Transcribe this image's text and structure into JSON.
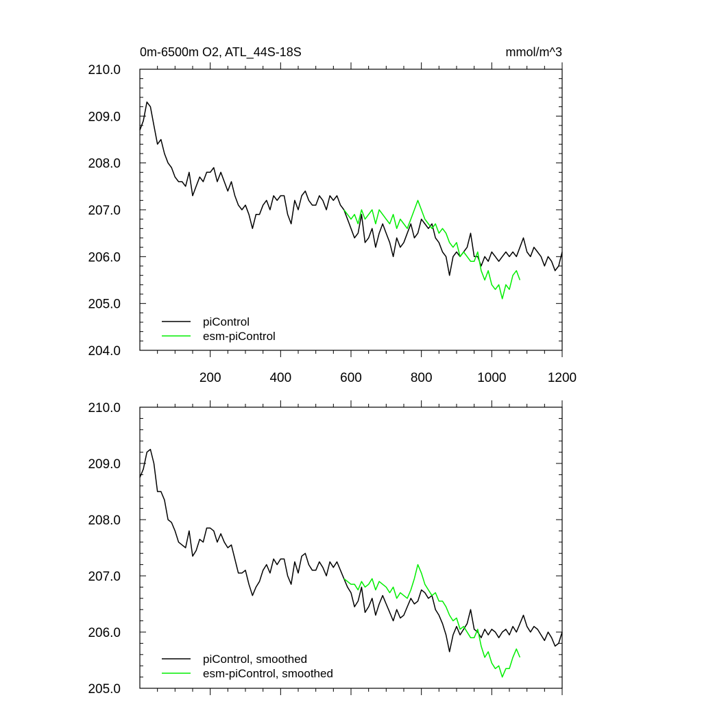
{
  "chart_data": [
    {
      "type": "line",
      "title": "0m-6500m O2, ATL_44S-18S",
      "units": "mmol/m^3",
      "xlim": [
        0,
        1200
      ],
      "ylim": [
        204.0,
        210.0
      ],
      "xticks": [
        200,
        400,
        600,
        800,
        1000,
        1200
      ],
      "xtick_labels": [
        "200",
        "400",
        "600",
        "800",
        "1000",
        "1200"
      ],
      "yticks": [
        204.0,
        205.0,
        206.0,
        207.0,
        208.0,
        209.0,
        210.0
      ],
      "ytick_labels": [
        "204.0",
        "205.0",
        "206.0",
        "207.0",
        "208.0",
        "209.0",
        "210.0"
      ],
      "legend_position": "bottom-left",
      "series": [
        {
          "name": "piControl",
          "color": "#000000",
          "x": [
            0,
            10,
            20,
            30,
            40,
            50,
            60,
            70,
            80,
            90,
            100,
            110,
            120,
            130,
            140,
            150,
            160,
            170,
            180,
            190,
            200,
            210,
            220,
            230,
            240,
            250,
            260,
            270,
            280,
            290,
            300,
            310,
            320,
            330,
            340,
            350,
            360,
            370,
            380,
            390,
            400,
            410,
            420,
            430,
            440,
            450,
            460,
            470,
            480,
            490,
            500,
            510,
            520,
            530,
            540,
            550,
            560,
            570,
            580,
            590,
            600,
            610,
            620,
            630,
            640,
            650,
            660,
            670,
            680,
            690,
            700,
            710,
            720,
            730,
            740,
            750,
            760,
            770,
            780,
            790,
            800,
            810,
            820,
            830,
            840,
            850,
            860,
            870,
            880,
            890,
            900,
            910,
            920,
            930,
            940,
            950,
            960,
            970,
            980,
            990,
            1000,
            1010,
            1020,
            1030,
            1040,
            1050,
            1060,
            1070,
            1080,
            1090,
            1100,
            1110,
            1120,
            1130,
            1140,
            1150,
            1160,
            1170,
            1180,
            1190,
            1200
          ],
          "values": [
            208.7,
            208.9,
            209.3,
            209.2,
            208.8,
            208.4,
            208.5,
            208.2,
            208.0,
            207.9,
            207.7,
            207.6,
            207.6,
            207.5,
            207.8,
            207.3,
            207.5,
            207.7,
            207.6,
            207.8,
            207.8,
            207.9,
            207.6,
            207.8,
            207.6,
            207.4,
            207.6,
            207.3,
            207.1,
            207.0,
            207.1,
            206.9,
            206.6,
            206.9,
            206.9,
            207.1,
            207.2,
            207.0,
            207.3,
            207.2,
            207.3,
            207.3,
            206.9,
            206.7,
            207.2,
            207.0,
            207.3,
            207.4,
            207.2,
            207.1,
            207.1,
            207.3,
            207.2,
            207.0,
            207.3,
            207.2,
            207.3,
            207.1,
            207.0,
            206.8,
            206.6,
            206.4,
            206.5,
            206.9,
            206.3,
            206.4,
            206.6,
            206.2,
            206.5,
            206.7,
            206.5,
            206.3,
            206.0,
            206.4,
            206.2,
            206.3,
            206.5,
            206.7,
            206.4,
            206.5,
            206.8,
            206.7,
            206.6,
            206.7,
            206.4,
            206.3,
            206.1,
            206.0,
            205.6,
            206.0,
            206.1,
            206.0,
            206.1,
            206.2,
            206.5,
            206.0,
            206.0,
            205.8,
            206.0,
            205.9,
            206.1,
            206.0,
            205.9,
            206.0,
            206.1,
            206.0,
            206.1,
            206.0,
            206.2,
            206.4,
            206.1,
            206.0,
            206.2,
            206.1,
            206.0,
            205.8,
            206.0,
            205.9,
            205.7,
            205.8,
            206.1
          ]
        },
        {
          "name": "esm-piControl",
          "color": "#00ee00",
          "x": [
            580,
            590,
            600,
            610,
            620,
            630,
            640,
            650,
            660,
            670,
            680,
            690,
            700,
            710,
            720,
            730,
            740,
            750,
            760,
            770,
            780,
            790,
            800,
            810,
            820,
            830,
            840,
            850,
            860,
            870,
            880,
            890,
            900,
            910,
            920,
            930,
            940,
            950,
            960,
            970,
            980,
            990,
            1000,
            1010,
            1020,
            1030,
            1040,
            1050,
            1060,
            1070,
            1080
          ],
          "values": [
            207.0,
            206.9,
            206.8,
            206.9,
            206.7,
            207.0,
            206.8,
            206.9,
            207.0,
            206.7,
            207.0,
            206.9,
            206.8,
            206.7,
            206.9,
            206.6,
            206.8,
            206.7,
            206.6,
            206.8,
            207.0,
            207.2,
            207.0,
            206.8,
            206.7,
            206.6,
            206.7,
            206.5,
            206.6,
            206.5,
            206.3,
            206.2,
            206.3,
            206.0,
            206.1,
            206.0,
            205.9,
            205.9,
            206.1,
            205.7,
            205.5,
            205.7,
            205.4,
            205.3,
            205.4,
            205.1,
            205.4,
            205.3,
            205.6,
            205.7,
            205.5
          ]
        }
      ]
    },
    {
      "type": "line",
      "title": "",
      "xlim": [
        0,
        1200
      ],
      "ylim": [
        205.0,
        210.0
      ],
      "yticks": [
        205.0,
        206.0,
        207.0,
        208.0,
        209.0,
        210.0
      ],
      "ytick_labels": [
        "205.0",
        "206.0",
        "207.0",
        "208.0",
        "209.0",
        "210.0"
      ],
      "legend_position": "bottom-left",
      "series": [
        {
          "name": "piControl, smoothed",
          "color": "#000000",
          "x": [
            0,
            10,
            20,
            30,
            40,
            50,
            60,
            70,
            80,
            90,
            100,
            110,
            120,
            130,
            140,
            150,
            160,
            170,
            180,
            190,
            200,
            210,
            220,
            230,
            240,
            250,
            260,
            270,
            280,
            290,
            300,
            310,
            320,
            330,
            340,
            350,
            360,
            370,
            380,
            390,
            400,
            410,
            420,
            430,
            440,
            450,
            460,
            470,
            480,
            490,
            500,
            510,
            520,
            530,
            540,
            550,
            560,
            570,
            580,
            590,
            600,
            610,
            620,
            630,
            640,
            650,
            660,
            670,
            680,
            690,
            700,
            710,
            720,
            730,
            740,
            750,
            760,
            770,
            780,
            790,
            800,
            810,
            820,
            830,
            840,
            850,
            860,
            870,
            880,
            890,
            900,
            910,
            920,
            930,
            940,
            950,
            960,
            970,
            980,
            990,
            1000,
            1010,
            1020,
            1030,
            1040,
            1050,
            1060,
            1070,
            1080,
            1090,
            1100,
            1110,
            1120,
            1130,
            1140,
            1150,
            1160,
            1170,
            1180,
            1190,
            1200
          ],
          "values": [
            208.75,
            208.9,
            209.2,
            209.25,
            209.0,
            208.5,
            208.5,
            208.35,
            208.0,
            207.95,
            207.8,
            207.6,
            207.55,
            207.5,
            207.8,
            207.35,
            207.45,
            207.65,
            207.6,
            207.85,
            207.85,
            207.8,
            207.6,
            207.75,
            207.6,
            207.5,
            207.55,
            207.3,
            207.05,
            207.05,
            207.1,
            206.85,
            206.65,
            206.8,
            206.9,
            207.1,
            207.2,
            207.05,
            207.3,
            207.2,
            207.3,
            207.3,
            207.0,
            206.85,
            207.25,
            207.05,
            207.35,
            207.4,
            207.2,
            207.1,
            207.1,
            207.25,
            207.15,
            207.0,
            207.25,
            207.15,
            207.25,
            207.1,
            206.95,
            206.8,
            206.7,
            206.45,
            206.55,
            206.8,
            206.35,
            206.45,
            206.6,
            206.3,
            206.5,
            206.65,
            206.5,
            206.35,
            206.2,
            206.4,
            206.25,
            206.3,
            206.45,
            206.6,
            206.5,
            206.55,
            206.75,
            206.7,
            206.6,
            206.65,
            206.4,
            206.3,
            206.15,
            205.95,
            205.65,
            205.95,
            206.1,
            205.95,
            206.05,
            206.15,
            206.4,
            206.05,
            206.0,
            205.9,
            206.05,
            205.95,
            206.05,
            206.0,
            205.9,
            206.0,
            206.05,
            205.95,
            206.1,
            206.0,
            206.15,
            206.3,
            206.1,
            206.0,
            206.1,
            206.05,
            205.95,
            205.85,
            206.0,
            205.9,
            205.75,
            205.8,
            206.0
          ]
        },
        {
          "name": "esm-piControl, smoothed",
          "color": "#00ee00",
          "x": [
            580,
            590,
            600,
            610,
            620,
            630,
            640,
            650,
            660,
            670,
            680,
            690,
            700,
            710,
            720,
            730,
            740,
            750,
            760,
            770,
            780,
            790,
            800,
            810,
            820,
            830,
            840,
            850,
            860,
            870,
            880,
            890,
            900,
            910,
            920,
            930,
            940,
            950,
            960,
            970,
            980,
            990,
            1000,
            1010,
            1020,
            1030,
            1040,
            1050,
            1060,
            1070,
            1080
          ],
          "values": [
            206.95,
            206.9,
            206.85,
            206.85,
            206.75,
            206.9,
            206.8,
            206.85,
            206.95,
            206.75,
            206.9,
            206.85,
            206.8,
            206.7,
            206.8,
            206.6,
            206.7,
            206.65,
            206.6,
            206.75,
            206.95,
            207.2,
            207.05,
            206.85,
            206.75,
            206.65,
            206.7,
            206.55,
            206.55,
            206.45,
            206.3,
            206.2,
            206.25,
            206.05,
            206.1,
            206.0,
            205.9,
            205.9,
            206.05,
            205.75,
            205.55,
            205.65,
            205.45,
            205.35,
            205.4,
            205.2,
            205.35,
            205.35,
            205.55,
            205.7,
            205.55
          ]
        }
      ]
    }
  ]
}
